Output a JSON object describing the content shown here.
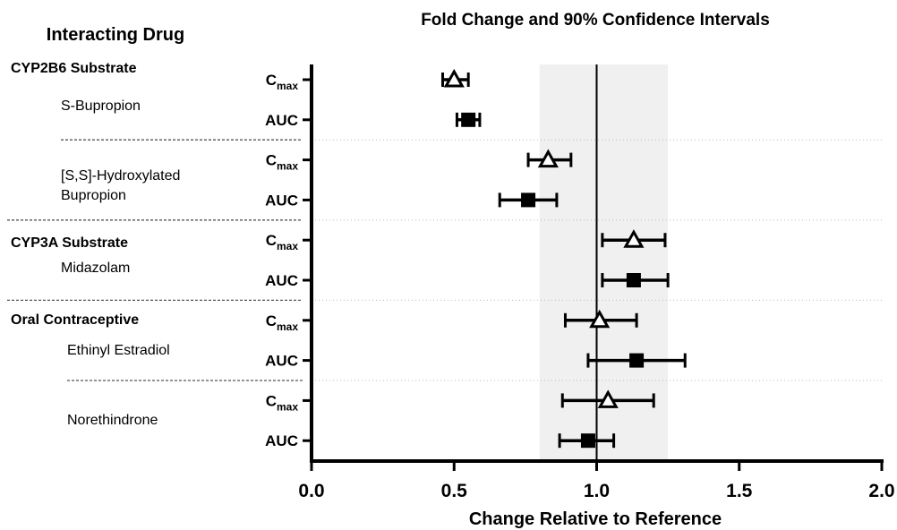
{
  "chart_data": {
    "type": "scatter",
    "title": "Fold Change and 90% Confidence Intervals",
    "left_header": "Interacting Drug",
    "xlabel": "Change Relative to Reference",
    "xlim": [
      0.0,
      2.0
    ],
    "xticks": [
      "0.0",
      "0.5",
      "1.0",
      "1.5",
      "2.0"
    ],
    "reference_line": 1.0,
    "no_effect_band": [
      0.8,
      1.25
    ],
    "groups": [
      {
        "name": "CYP2B6 Substrate"
      },
      {
        "name": "CYP3A Substrate"
      },
      {
        "name": "Oral Contraceptive"
      }
    ],
    "drugs": [
      {
        "name": "S-Bupropion"
      },
      {
        "name": "[S,S]-Hydroxylated",
        "name2": "Bupropion"
      },
      {
        "name": "Midazolam"
      },
      {
        "name": "Ethinyl Estradiol"
      },
      {
        "name": "Norethindrone"
      }
    ],
    "rows": [
      {
        "param": "C",
        "sub": "max",
        "marker": "open-triangle",
        "value": 0.5,
        "ci": [
          0.46,
          0.55
        ]
      },
      {
        "param": "AUC",
        "sub": "",
        "marker": "filled-square",
        "value": 0.55,
        "ci": [
          0.51,
          0.59
        ]
      },
      {
        "param": "C",
        "sub": "max",
        "marker": "open-triangle",
        "value": 0.83,
        "ci": [
          0.76,
          0.91
        ]
      },
      {
        "param": "AUC",
        "sub": "",
        "marker": "filled-square",
        "value": 0.76,
        "ci": [
          0.66,
          0.86
        ]
      },
      {
        "param": "C",
        "sub": "max",
        "marker": "open-triangle",
        "value": 1.13,
        "ci": [
          1.02,
          1.24
        ]
      },
      {
        "param": "AUC",
        "sub": "",
        "marker": "filled-square",
        "value": 1.13,
        "ci": [
          1.02,
          1.25
        ]
      },
      {
        "param": "C",
        "sub": "max",
        "marker": "open-triangle",
        "value": 1.01,
        "ci": [
          0.89,
          1.14
        ]
      },
      {
        "param": "AUC",
        "sub": "",
        "marker": "filled-square",
        "value": 1.14,
        "ci": [
          0.97,
          1.31
        ]
      },
      {
        "param": "C",
        "sub": "max",
        "marker": "open-triangle",
        "value": 1.04,
        "ci": [
          0.88,
          1.2
        ]
      },
      {
        "param": "AUC",
        "sub": "",
        "marker": "filled-square",
        "value": 0.97,
        "ci": [
          0.87,
          1.06
        ]
      }
    ],
    "colors": {
      "band": "#f0f0f0",
      "ink": "#000000",
      "separator": "#555555",
      "gridline": "#bbbbbb"
    }
  }
}
